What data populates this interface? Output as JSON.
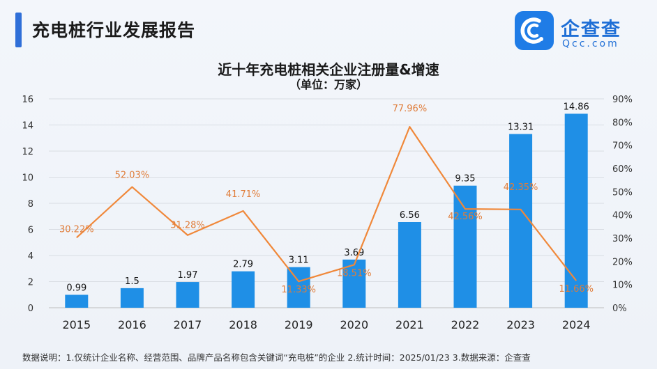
{
  "header": {
    "title": "充电桩行业发展报告"
  },
  "logo": {
    "name": "企查查",
    "sub": "Qcc.com",
    "icon": "qcc-logo-icon"
  },
  "chart_data": {
    "type": "bar+line",
    "title": "近十年充电桩相关企业注册量&增速",
    "subtitle": "（单位：万家）",
    "categories": [
      "2015",
      "2016",
      "2017",
      "2018",
      "2019",
      "2020",
      "2021",
      "2022",
      "2023",
      "2024"
    ],
    "bar_series": {
      "values": [
        0.99,
        1.5,
        1.97,
        2.79,
        3.11,
        3.69,
        6.56,
        9.35,
        13.31,
        14.86
      ],
      "labels": [
        "0.99",
        "1.5",
        "1.97",
        "2.79",
        "3.11",
        "3.69",
        "6.56",
        "9.35",
        "13.31",
        "14.86"
      ],
      "color": "#1f8fe6"
    },
    "line_series": {
      "values": [
        30.22,
        52.03,
        31.28,
        41.71,
        11.33,
        18.51,
        77.96,
        42.56,
        42.35,
        11.66
      ],
      "labels": [
        "30.22%",
        "52.03%",
        "31.28%",
        "41.71%",
        "11.33%",
        "18.51%",
        "77.96%",
        "42.56%",
        "42.35%",
        "11.66%"
      ],
      "color": "#f0883a"
    },
    "left_axis": {
      "min": 0,
      "max": 16,
      "ticks": [
        "0",
        "2",
        "4",
        "6",
        "8",
        "10",
        "12",
        "14",
        "16"
      ]
    },
    "right_axis": {
      "min": 0,
      "max": 90,
      "ticks": [
        "0%",
        "10%",
        "20%",
        "30%",
        "40%",
        "50%",
        "60%",
        "70%",
        "80%",
        "90%"
      ]
    },
    "grid": true
  },
  "footnote": "数据说明：1.仅统计企业名称、经营范围、品牌产品名称包含关键词“充电桩”的企业   2.统计时间：2025/01/23   3.数据来源：企查查"
}
